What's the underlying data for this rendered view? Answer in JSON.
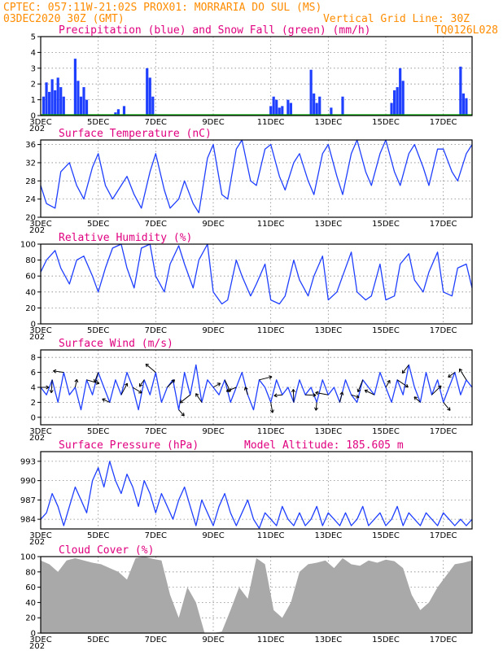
{
  "header": {
    "left_line1": "CPTEC:   057:11W-21:02S   PROX01: MORRARIA DO SUL (MS)",
    "left_line2": "03DEC2020 30Z (GMT)",
    "right_line2": "Vertical Grid Line: 30Z",
    "right_line3": "TQ0126L028"
  },
  "x_axis": {
    "labels": [
      "3DEC",
      "5DEC",
      "7DEC",
      "9DEC",
      "11DEC",
      "13DEC",
      "15DEC",
      "17DEC"
    ],
    "start_day": 3.0,
    "end_day": 18.0,
    "year_stub": "202"
  },
  "colors": {
    "precip": "#1f3fff",
    "snow": "#00aa00",
    "line": "#1f3fff",
    "cloud": "#a9a9a9",
    "arrow": "#000000",
    "title": "#e0007f",
    "header": "#ff8c00"
  },
  "chart_data": [
    {
      "type": "bar",
      "title": "Precipitation (blue) and Snow Fall (green) (mm/h)",
      "ylim": [
        0,
        5
      ],
      "yticks": [
        0,
        1,
        2,
        3,
        4,
        5
      ],
      "series": [
        {
          "name": "Precipitation",
          "x": [
            3.1,
            3.2,
            3.3,
            3.4,
            3.5,
            3.6,
            3.7,
            3.8,
            4.2,
            4.3,
            4.4,
            4.5,
            4.6,
            5.6,
            5.7,
            5.9,
            6.7,
            6.8,
            6.9,
            11.0,
            11.1,
            11.2,
            11.3,
            11.4,
            11.6,
            11.7,
            12.4,
            12.5,
            12.6,
            12.7,
            13.1,
            13.5,
            15.2,
            15.3,
            15.4,
            15.5,
            15.6,
            17.6,
            17.7,
            17.8
          ],
          "values": [
            1.2,
            2.1,
            1.5,
            2.3,
            1.6,
            2.4,
            1.8,
            1.2,
            3.6,
            2.2,
            1.2,
            1.8,
            1.0,
            0.2,
            0.4,
            0.6,
            3.0,
            2.4,
            1.2,
            0.6,
            1.2,
            1.0,
            0.5,
            0.6,
            1.0,
            0.8,
            2.9,
            1.4,
            0.8,
            1.2,
            0.5,
            1.2,
            0.8,
            1.6,
            1.8,
            3.0,
            2.2,
            3.1,
            1.4,
            1.1
          ]
        },
        {
          "name": "Snow Fall",
          "values": [
            0
          ]
        }
      ]
    },
    {
      "type": "line",
      "title": "Surface Temperature (nC)",
      "ylim": [
        20,
        37
      ],
      "yticks": [
        20,
        24,
        28,
        32,
        36
      ],
      "x": [
        3.0,
        3.2,
        3.5,
        3.7,
        4.0,
        4.25,
        4.5,
        4.8,
        5.0,
        5.25,
        5.5,
        5.8,
        6.0,
        6.25,
        6.5,
        6.8,
        7.0,
        7.3,
        7.5,
        7.8,
        8.0,
        8.3,
        8.5,
        8.8,
        9.0,
        9.3,
        9.5,
        9.8,
        10.0,
        10.3,
        10.5,
        10.8,
        11.0,
        11.3,
        11.5,
        11.8,
        12.0,
        12.3,
        12.5,
        12.8,
        13.0,
        13.3,
        13.5,
        13.8,
        14.0,
        14.3,
        14.5,
        14.8,
        15.0,
        15.3,
        15.5,
        15.8,
        16.0,
        16.3,
        16.5,
        16.8,
        17.0,
        17.3,
        17.5,
        17.8,
        18.0
      ],
      "values": [
        27,
        23,
        22,
        30,
        32,
        27,
        24,
        31,
        34,
        27,
        24,
        27,
        29,
        25,
        22,
        30,
        34,
        26,
        22,
        24,
        28,
        23,
        21,
        33,
        36,
        25,
        24,
        35,
        37,
        28,
        27,
        35,
        36,
        29,
        26,
        32,
        34,
        28,
        25,
        34,
        36,
        29,
        25,
        34,
        37,
        30,
        27,
        34,
        37,
        30,
        27,
        34,
        36,
        31,
        27,
        35,
        35,
        30,
        28,
        34,
        36
      ]
    },
    {
      "type": "line",
      "title": "Relative Humidity (%)",
      "ylim": [
        0,
        100
      ],
      "yticks": [
        0,
        20,
        40,
        60,
        80,
        100
      ],
      "x": [
        3.0,
        3.2,
        3.5,
        3.7,
        4.0,
        4.25,
        4.5,
        4.8,
        5.0,
        5.25,
        5.5,
        5.8,
        6.0,
        6.25,
        6.5,
        6.8,
        7.0,
        7.3,
        7.5,
        7.8,
        8.0,
        8.3,
        8.5,
        8.8,
        9.0,
        9.3,
        9.5,
        9.8,
        10.0,
        10.3,
        10.5,
        10.8,
        11.0,
        11.3,
        11.5,
        11.8,
        12.0,
        12.3,
        12.5,
        12.8,
        13.0,
        13.3,
        13.5,
        13.8,
        14.0,
        14.3,
        14.5,
        14.8,
        15.0,
        15.3,
        15.5,
        15.8,
        16.0,
        16.3,
        16.5,
        16.8,
        17.0,
        17.3,
        17.5,
        17.8,
        18.0
      ],
      "values": [
        65,
        80,
        92,
        70,
        50,
        80,
        85,
        60,
        40,
        70,
        95,
        100,
        70,
        45,
        95,
        100,
        60,
        40,
        75,
        98,
        75,
        45,
        80,
        100,
        40,
        25,
        30,
        80,
        60,
        35,
        50,
        75,
        30,
        25,
        35,
        80,
        55,
        35,
        60,
        85,
        30,
        40,
        60,
        90,
        40,
        30,
        35,
        75,
        30,
        35,
        75,
        88,
        55,
        40,
        65,
        90,
        40,
        35,
        70,
        75,
        45
      ]
    },
    {
      "type": "line",
      "title": "Surface Wind (m/s)",
      "ylim": [
        -1,
        9
      ],
      "yticks": [
        0,
        2,
        4,
        6,
        8
      ],
      "x": [
        3.0,
        3.2,
        3.4,
        3.6,
        3.8,
        4.0,
        4.2,
        4.4,
        4.6,
        4.8,
        5.0,
        5.2,
        5.4,
        5.6,
        5.8,
        6.0,
        6.2,
        6.4,
        6.6,
        6.8,
        7.0,
        7.2,
        7.4,
        7.6,
        7.8,
        8.0,
        8.2,
        8.4,
        8.6,
        8.8,
        9.0,
        9.2,
        9.4,
        9.6,
        9.8,
        10.0,
        10.2,
        10.4,
        10.6,
        10.8,
        11.0,
        11.2,
        11.4,
        11.6,
        11.8,
        12.0,
        12.2,
        12.4,
        12.6,
        12.8,
        13.0,
        13.2,
        13.4,
        13.6,
        13.8,
        14.0,
        14.2,
        14.4,
        14.6,
        14.8,
        15.0,
        15.2,
        15.4,
        15.6,
        15.8,
        16.0,
        16.2,
        16.4,
        16.6,
        16.8,
        17.0,
        17.2,
        17.4,
        17.6,
        17.8,
        18.0
      ],
      "values": [
        4,
        3,
        5,
        2,
        6,
        3,
        4,
        1,
        5,
        3,
        6,
        4,
        2,
        5,
        3,
        6,
        4,
        1,
        5,
        3,
        6,
        2,
        4,
        5,
        1,
        6,
        3,
        7,
        2,
        5,
        4,
        3,
        5,
        2,
        4,
        6,
        3,
        1,
        5,
        4,
        2,
        5,
        3,
        4,
        2,
        5,
        3,
        4,
        2,
        5,
        3,
        4,
        2,
        5,
        3,
        2,
        5,
        4,
        3,
        6,
        4,
        2,
        5,
        3,
        7,
        4,
        2,
        6,
        3,
        5,
        2,
        4,
        6,
        3,
        5,
        4
      ],
      "arrows_note": ""
    },
    {
      "type": "line",
      "title": "Surface Pressure (hPa)",
      "subtitle": "Model Altitude: 185.605  m",
      "ylim": [
        982.5,
        994.5
      ],
      "yticks": [
        984,
        987,
        990,
        993
      ],
      "x": [
        3.0,
        3.2,
        3.4,
        3.6,
        3.8,
        4.0,
        4.2,
        4.4,
        4.6,
        4.8,
        5.0,
        5.2,
        5.4,
        5.6,
        5.8,
        6.0,
        6.2,
        6.4,
        6.6,
        6.8,
        7.0,
        7.2,
        7.4,
        7.6,
        7.8,
        8.0,
        8.2,
        8.4,
        8.6,
        8.8,
        9.0,
        9.2,
        9.4,
        9.6,
        9.8,
        10.0,
        10.2,
        10.4,
        10.6,
        10.8,
        11.0,
        11.2,
        11.4,
        11.6,
        11.8,
        12.0,
        12.2,
        12.4,
        12.6,
        12.8,
        13.0,
        13.2,
        13.4,
        13.6,
        13.8,
        14.0,
        14.2,
        14.4,
        14.6,
        14.8,
        15.0,
        15.2,
        15.4,
        15.6,
        15.8,
        16.0,
        16.2,
        16.4,
        16.6,
        16.8,
        17.0,
        17.2,
        17.4,
        17.6,
        17.8,
        18.0
      ],
      "values": [
        984,
        985,
        988,
        986,
        983,
        986,
        989,
        987,
        985,
        990,
        992,
        989,
        993,
        990,
        988,
        991,
        989,
        986,
        990,
        988,
        985,
        988,
        986,
        984,
        987,
        989,
        986,
        983,
        987,
        985,
        983,
        986,
        988,
        985,
        983,
        985,
        987,
        984,
        982.6,
        985,
        984,
        983,
        986,
        984,
        983,
        985,
        983,
        984,
        986,
        983,
        985,
        984,
        983,
        985,
        983,
        984,
        986,
        983,
        984,
        985,
        983,
        984,
        986,
        983,
        985,
        984,
        983,
        985,
        984,
        983,
        985,
        984,
        983,
        984,
        983,
        984
      ]
    },
    {
      "type": "area",
      "title": "Cloud Cover (%)",
      "ylim": [
        0,
        100
      ],
      "yticks": [
        0,
        20,
        40,
        60,
        80,
        100
      ],
      "x": [
        3.0,
        3.3,
        3.6,
        3.9,
        4.2,
        4.5,
        4.8,
        5.1,
        5.4,
        5.7,
        6.0,
        6.3,
        6.6,
        6.9,
        7.2,
        7.5,
        7.8,
        8.1,
        8.4,
        8.7,
        9.0,
        9.3,
        9.6,
        9.9,
        10.2,
        10.5,
        10.8,
        11.1,
        11.4,
        11.7,
        12.0,
        12.3,
        12.6,
        12.9,
        13.2,
        13.5,
        13.8,
        14.1,
        14.4,
        14.7,
        15.0,
        15.3,
        15.6,
        15.9,
        16.2,
        16.5,
        16.8,
        17.1,
        17.4,
        17.7,
        18.0
      ],
      "values": [
        95,
        90,
        80,
        95,
        98,
        95,
        92,
        90,
        85,
        80,
        70,
        98,
        100,
        97,
        95,
        50,
        20,
        60,
        40,
        0,
        0,
        2,
        30,
        60,
        45,
        98,
        90,
        30,
        20,
        40,
        80,
        90,
        92,
        95,
        85,
        98,
        90,
        88,
        95,
        92,
        96,
        94,
        85,
        50,
        30,
        40,
        60,
        75,
        90,
        92,
        95
      ]
    }
  ]
}
